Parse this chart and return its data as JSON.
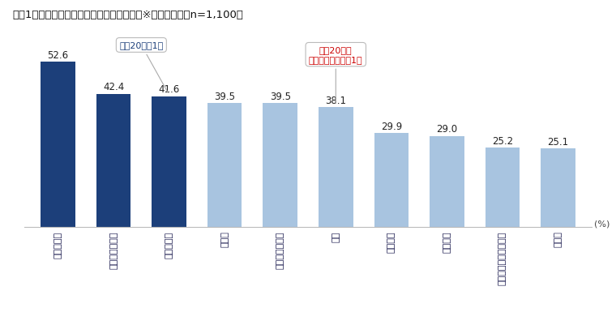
{
  "title_part1": "＜図1＞　",
  "title_part2": "今の時代、もう不要だと思うもの※複数回答",
  "title_part3": "　（n=1,100）",
  "categories": [
    "義理チョコ",
    "お歳暮・お中元",
    "敷金・礼金",
    "年賀状",
    "大人数の結婚式",
    "接待",
    "連帯責任",
    "年功序列",
    "きまった時間での勤務",
    "ハンコ"
  ],
  "values": [
    52.6,
    42.4,
    41.6,
    39.5,
    39.5,
    38.1,
    29.9,
    29.0,
    25.2,
    25.1
  ],
  "bar_color_dark": "#1c3f7a",
  "bar_color_light": "#a8c4e0",
  "dark_indices": [
    0,
    1,
    2
  ],
  "ylabel_text": "(%)",
  "annotation1_text": "男性20代で1位",
  "annotation1_color": "#1c3f7a",
  "annotation1_bar_index": 2,
  "annotation2_line1": "女性20代で",
  "annotation2_line2": "義理チョコと同率1位",
  "annotation2_color": "#cc0000",
  "annotation2_bar_index": 5,
  "ylim": [
    0,
    60
  ],
  "bg_color": "#ffffff"
}
